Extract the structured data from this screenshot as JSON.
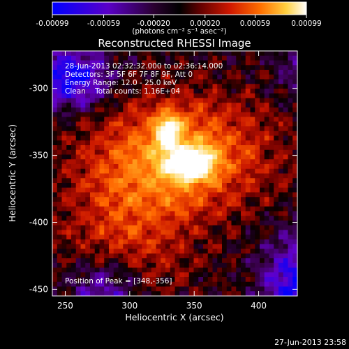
{
  "colorbar": {
    "ticks": [
      "-0.00099",
      "-0.00059",
      "-0.00020",
      "0.00020",
      "0.00059",
      "0.00099"
    ],
    "tick_values": [
      -0.00099,
      -0.00059,
      -0.0002,
      0.0002,
      0.00059,
      0.00099
    ],
    "range": [
      -0.00099,
      0.00099
    ],
    "unit_label": "(photons cm⁻² s⁻¹ asec⁻²)"
  },
  "chart_data": {
    "type": "heatmap",
    "title": "Reconstructed RHESSI Image",
    "xlabel": "Heliocentric X (arcsec)",
    "ylabel": "Heliocentric Y (arcsec)",
    "xlim": [
      240,
      430
    ],
    "ylim": [
      -455,
      -272
    ],
    "xticks": [
      250,
      300,
      350,
      400
    ],
    "yticks": [
      -300,
      -350,
      -400,
      -450
    ],
    "peak": [
      348,
      -356
    ],
    "annotations": [
      "28-Jun-2013 02:32:32.000 to 02:36:14.000",
      "Detectors: 3F 5F 6F 7F 8F 9F, Att 0",
      "Energy Range: 12.0 - 25.0 keV",
      "Clean    Total counts: 1.16E+04",
      "Position of Peak = [348,-356]"
    ]
  },
  "footer": {
    "timestamp": "27-Jun-2013 23:58"
  },
  "colors": {
    "background": "#000000",
    "colormap": [
      "#0000ff",
      "#5a00c8",
      "#3c003c",
      "#000000",
      "#5a0000",
      "#c81400",
      "#ff6400",
      "#ffc832",
      "#ffffff"
    ]
  }
}
